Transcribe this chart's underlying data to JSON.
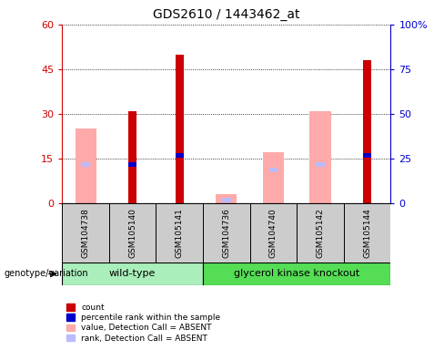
{
  "title": "GDS2610 / 1443462_at",
  "samples": [
    "GSM104738",
    "GSM105140",
    "GSM105141",
    "GSM104736",
    "GSM104740",
    "GSM105142",
    "GSM105144"
  ],
  "red_bars": [
    null,
    31,
    50,
    null,
    null,
    null,
    48
  ],
  "pink_bars": [
    25,
    null,
    null,
    3,
    17,
    31,
    null
  ],
  "blue_squares": [
    null,
    13,
    16,
    null,
    null,
    null,
    16
  ],
  "light_blue_squares": [
    13,
    null,
    null,
    1,
    11,
    13,
    null
  ],
  "ylim_left": [
    0,
    60
  ],
  "ylim_right": [
    0,
    100
  ],
  "yticks_left": [
    0,
    15,
    30,
    45,
    60
  ],
  "yticks_right": [
    0,
    25,
    50,
    75,
    100
  ],
  "ytick_labels_left": [
    "0",
    "15",
    "30",
    "45",
    "60"
  ],
  "ytick_labels_right": [
    "0",
    "25",
    "50",
    "75",
    "100%"
  ],
  "left_axis_color": "#cc0000",
  "right_axis_color": "#0000cc",
  "red_color": "#cc0000",
  "pink_color": "#ffaaaa",
  "blue_color": "#0000cc",
  "light_blue_color": "#bbbbff",
  "wt_color": "#aaeebb",
  "gk_color": "#55dd55",
  "sample_bg": "#cccccc",
  "legend_items": [
    {
      "label": "count",
      "color": "#cc0000"
    },
    {
      "label": "percentile rank within the sample",
      "color": "#0000cc"
    },
    {
      "label": "value, Detection Call = ABSENT",
      "color": "#ffaaaa"
    },
    {
      "label": "rank, Detection Call = ABSENT",
      "color": "#bbbbff"
    }
  ]
}
